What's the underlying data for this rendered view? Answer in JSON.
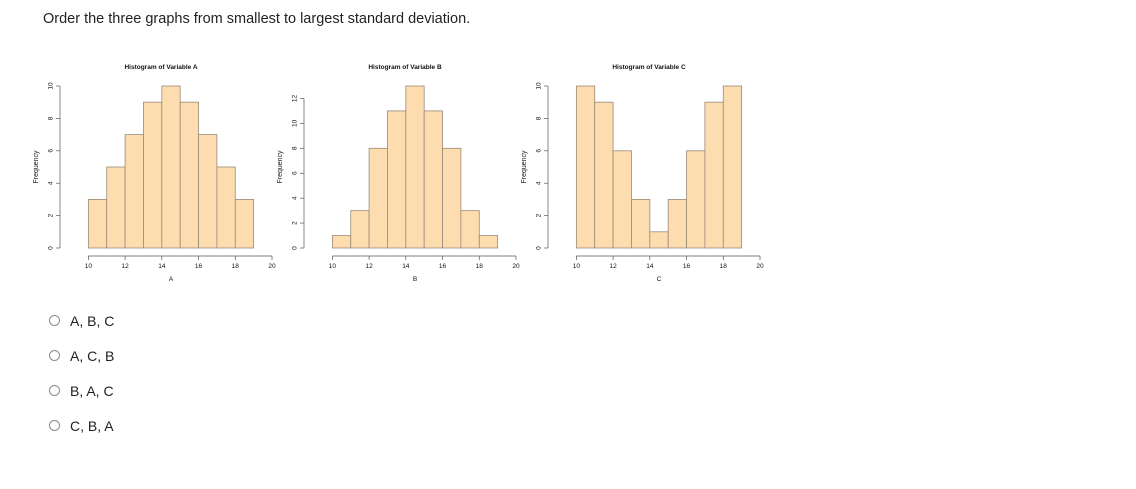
{
  "question": {
    "text": "Order the three graphs from smallest to largest standard deviation."
  },
  "options": [
    {
      "label": "A, B, C"
    },
    {
      "label": "A, C, B"
    },
    {
      "label": "B, A, C"
    },
    {
      "label": "C, B, A"
    }
  ],
  "colors": {
    "bar_fill": "#fddcb0",
    "bar_stroke": "#9a8a78",
    "axis": "#555555"
  },
  "chart_data": [
    {
      "type": "bar",
      "title": "Histogram of Variable A",
      "xlabel": "A",
      "ylabel": "Frequency",
      "bin_width": 1,
      "x_start": 10,
      "values": [
        3,
        5,
        7,
        9,
        10,
        9,
        7,
        5,
        3
      ],
      "xlim": [
        9,
        20
      ],
      "ylim": [
        0,
        10
      ],
      "xticks": [
        10,
        12,
        14,
        16,
        18,
        20
      ],
      "yticks": [
        0,
        2,
        4,
        6,
        8,
        10
      ]
    },
    {
      "type": "bar",
      "title": "Histogram of Variable B",
      "xlabel": "B",
      "ylabel": "Frequency",
      "bin_width": 1,
      "x_start": 10,
      "values": [
        1,
        3,
        8,
        11,
        13,
        11,
        8,
        3,
        1
      ],
      "xlim": [
        9,
        20
      ],
      "ylim": [
        0,
        13
      ],
      "xticks": [
        10,
        12,
        14,
        16,
        18,
        20
      ],
      "yticks": [
        0,
        2,
        4,
        6,
        8,
        10,
        12
      ]
    },
    {
      "type": "bar",
      "title": "Histogram of Variable C",
      "xlabel": "C",
      "ylabel": "Frequency",
      "bin_width": 1,
      "x_start": 10,
      "values": [
        10,
        9,
        6,
        3,
        1,
        3,
        6,
        9,
        10
      ],
      "xlim": [
        9,
        20
      ],
      "ylim": [
        0,
        10
      ],
      "xticks": [
        10,
        12,
        14,
        16,
        18,
        20
      ],
      "yticks": [
        0,
        2,
        4,
        6,
        8,
        10
      ]
    }
  ]
}
